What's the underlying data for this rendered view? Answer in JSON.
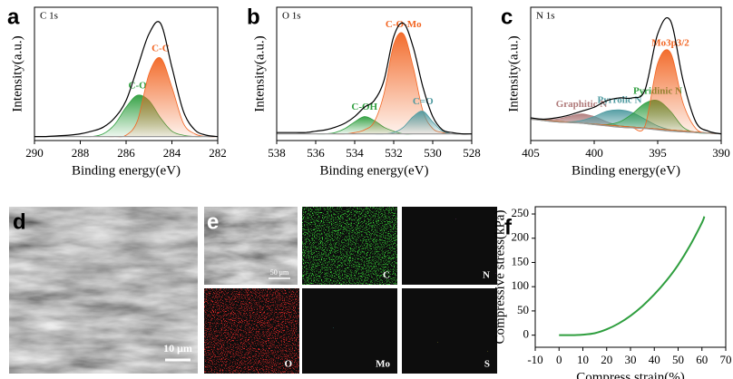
{
  "chart_data": [
    {
      "type": "spectrum",
      "panel": "a",
      "inset": "C 1s",
      "xlabel": "Binding energy(eV)",
      "ylabel": "Intensity(a.u.)",
      "x": [
        290,
        289.5,
        289,
        288.5,
        288,
        287.5,
        287,
        286.5,
        286,
        285.5,
        285,
        284.5,
        284,
        283.5,
        283,
        282.5,
        282
      ],
      "xlim": [
        290,
        282
      ],
      "xticks": [
        290,
        288,
        286,
        284,
        282
      ],
      "ylim": [
        0,
        100
      ],
      "series": [
        {
          "name": "C-O",
          "color": "#2e9e3e",
          "values": [
            3,
            3,
            3,
            3,
            3,
            3,
            5,
            12,
            25,
            34,
            30,
            17,
            7,
            4,
            3,
            3,
            3
          ]
        },
        {
          "name": "C-C",
          "color": "#f26522",
          "values": [
            3,
            3,
            3,
            3,
            3,
            3,
            3,
            3,
            4,
            15,
            50,
            62,
            40,
            13,
            5,
            3,
            3
          ]
        },
        {
          "color": "#999999",
          "values": [
            3,
            3,
            3,
            3,
            3,
            3,
            3,
            3,
            3,
            3,
            3,
            3,
            3,
            3,
            3,
            3,
            3
          ]
        },
        {
          "color": "#000000",
          "values": [
            3,
            3,
            3.5,
            4,
            5,
            7,
            10,
            17,
            30,
            55,
            80,
            88,
            55,
            22,
            8,
            4,
            3
          ]
        }
      ]
    },
    {
      "type": "spectrum",
      "panel": "b",
      "inset": "O 1s",
      "xlabel": "Binding energy(eV)",
      "ylabel": "Intensity(a.u.)",
      "x": [
        538,
        537.5,
        537,
        536.5,
        536,
        535.5,
        535,
        534.5,
        534,
        533.5,
        533,
        532.5,
        532,
        531.5,
        531,
        530.5,
        530,
        529.5,
        529,
        528.5,
        528
      ],
      "xlim": [
        538,
        528
      ],
      "xticks": [
        538,
        536,
        534,
        532,
        530,
        528
      ],
      "ylim": [
        0,
        100
      ],
      "series": [
        {
          "name": "C-OH",
          "color": "#2e9e3e",
          "values": [
            5,
            5,
            5,
            5,
            5,
            5,
            6,
            9,
            14,
            18,
            15,
            10,
            7,
            5,
            5,
            5,
            5,
            5,
            5,
            5,
            5
          ]
        },
        {
          "name": "C-O-Mo",
          "color": "#f26522",
          "values": [
            5,
            5,
            5,
            5,
            5,
            5,
            5,
            5,
            6,
            8,
            14,
            35,
            72,
            80,
            55,
            22,
            9,
            6,
            5,
            5,
            5
          ]
        },
        {
          "name": "C=O",
          "color": "#4e9aa0",
          "values": [
            5,
            5,
            5,
            5,
            5,
            5,
            5,
            5,
            5,
            5,
            5,
            5,
            6,
            10,
            18,
            22,
            14,
            7,
            5,
            5,
            5
          ]
        },
        {
          "color": "#999999",
          "values": [
            5,
            5,
            5,
            5,
            5,
            5,
            5,
            5,
            5,
            5,
            5,
            5,
            5,
            5,
            5,
            5,
            5,
            5,
            5,
            5,
            5
          ]
        },
        {
          "color": "#000000",
          "values": [
            6,
            6,
            6,
            6,
            7,
            8,
            10,
            13,
            18,
            25,
            30,
            45,
            78,
            88,
            70,
            40,
            18,
            8,
            6,
            5,
            5
          ]
        }
      ]
    },
    {
      "type": "spectrum",
      "panel": "c",
      "inset": "N 1s",
      "xlabel": "Binding energy(eV)",
      "ylabel": "Intensity(a.u.)",
      "x": [
        405,
        404,
        403,
        402,
        401,
        400,
        399,
        398,
        397,
        396,
        395,
        394,
        393,
        392,
        391,
        390
      ],
      "xlim": [
        405,
        390
      ],
      "xticks": [
        405,
        400,
        395,
        390
      ],
      "ylim": [
        0,
        100
      ],
      "series": [
        {
          "name": "Graphitic N",
          "color": "#b07a7a",
          "values": [
            16,
            15.5,
            16,
            18,
            20,
            18,
            14,
            11,
            9.5,
            9,
            8,
            7,
            6.5,
            6,
            5.5,
            5
          ]
        },
        {
          "name": "Pyrrolic N",
          "color": "#4e9aa0",
          "values": [
            16,
            15,
            14,
            14,
            15,
            18,
            22,
            23,
            21,
            16,
            11,
            8,
            6.5,
            6,
            5.5,
            5
          ]
        },
        {
          "name": "Pyridinic N",
          "color": "#2e9e3e",
          "values": [
            16,
            15,
            14,
            13.5,
            13,
            12,
            12,
            14,
            20,
            28,
            30,
            22,
            10,
            6,
            5.5,
            5
          ]
        },
        {
          "name": "Mo3p3/2",
          "color": "#f26522",
          "values": [
            16,
            15,
            14,
            13.5,
            13,
            12,
            11,
            10,
            9.5,
            11,
            58,
            66,
            28,
            9,
            5.5,
            5
          ]
        },
        {
          "color": "#999999",
          "values": [
            16,
            15,
            14,
            13.5,
            13,
            12,
            11,
            10,
            9.5,
            9,
            8,
            7,
            6.5,
            6,
            5.5,
            5
          ]
        },
        {
          "color": "#000000",
          "values": [
            17,
            16,
            17,
            19,
            22,
            25,
            30,
            32,
            32,
            38,
            80,
            90,
            45,
            14,
            7,
            5
          ]
        }
      ]
    },
    {
      "type": "line",
      "panel": "f",
      "xlabel": "Compress strain(%)",
      "ylabel": "Compressive stress(kPa)",
      "x": [
        0,
        5,
        10,
        15,
        20,
        25,
        30,
        35,
        40,
        45,
        50,
        55,
        60,
        61
      ],
      "xlim": [
        -10,
        70
      ],
      "xticks": [
        -10,
        0,
        10,
        20,
        30,
        40,
        50,
        60,
        70
      ],
      "ylim": [
        -25,
        265
      ],
      "yticks": [
        0,
        50,
        100,
        150,
        200,
        250
      ],
      "series": [
        {
          "color": "#2e9e3e",
          "values": [
            0,
            0,
            1,
            4,
            12,
            24,
            40,
            60,
            84,
            112,
            145,
            185,
            232,
            245
          ]
        }
      ]
    }
  ],
  "images": {
    "d": {
      "panel": "d",
      "scale_bar": "10 μm"
    },
    "e": {
      "panel": "e",
      "scale_bar": "50 μm",
      "maps": [
        "C",
        "N",
        "O",
        "Mo",
        "S"
      ]
    }
  }
}
